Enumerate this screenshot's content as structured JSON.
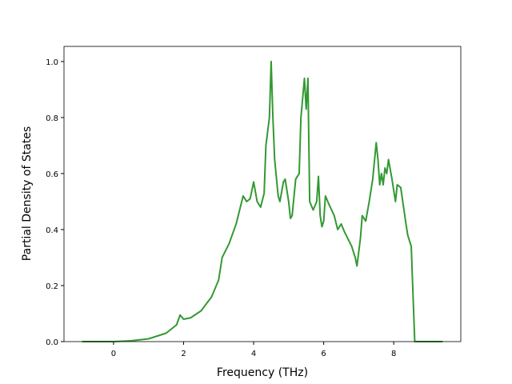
{
  "chart_data": {
    "type": "line",
    "x_label": "Frequency (THz)",
    "y_label": "Partial Density of States",
    "xlim": [
      -1.415,
      9.915
    ],
    "ylim": [
      0,
      1.054
    ],
    "xticks": [
      0,
      2,
      4,
      6,
      8
    ],
    "yticks": [
      {
        "value": 0,
        "label": "0.0"
      },
      0.2,
      0.4,
      0.6,
      0.8,
      {
        "value": 1,
        "label": "1.0"
      }
    ],
    "series": [
      {
        "color": "#339933",
        "x": [
          -0.9,
          0,
          0.5,
          1.0,
          1.5,
          1.8,
          1.9,
          2.0,
          2.2,
          2.5,
          2.8,
          3.0,
          3.1,
          3.3,
          3.5,
          3.6,
          3.7,
          3.8,
          3.9,
          4.0,
          4.1,
          4.2,
          4.3,
          4.35,
          4.45,
          4.5,
          4.55,
          4.6,
          4.7,
          4.75,
          4.85,
          4.9,
          5.0,
          5.05,
          5.1,
          5.2,
          5.3,
          5.35,
          5.45,
          5.5,
          5.55,
          5.6,
          5.7,
          5.8,
          5.85,
          5.9,
          5.95,
          6.0,
          6.05,
          6.15,
          6.3,
          6.4,
          6.5,
          6.6,
          6.8,
          6.9,
          6.95,
          7.05,
          7.1,
          7.2,
          7.3,
          7.4,
          7.5,
          7.55,
          7.6,
          7.65,
          7.7,
          7.75,
          7.8,
          7.85,
          7.95,
          8.05,
          8.1,
          8.2,
          8.35,
          8.4,
          8.5,
          8.6,
          9.4
        ],
        "values": [
          0,
          0,
          0.003,
          0.01,
          0.03,
          0.06,
          0.095,
          0.08,
          0.085,
          0.11,
          0.16,
          0.22,
          0.3,
          0.35,
          0.42,
          0.47,
          0.52,
          0.5,
          0.51,
          0.57,
          0.5,
          0.48,
          0.53,
          0.7,
          0.8,
          1.0,
          0.8,
          0.65,
          0.52,
          0.5,
          0.57,
          0.58,
          0.5,
          0.44,
          0.45,
          0.58,
          0.6,
          0.8,
          0.94,
          0.83,
          0.94,
          0.5,
          0.47,
          0.5,
          0.59,
          0.45,
          0.41,
          0.43,
          0.52,
          0.49,
          0.45,
          0.4,
          0.42,
          0.39,
          0.34,
          0.3,
          0.27,
          0.37,
          0.45,
          0.43,
          0.5,
          0.58,
          0.71,
          0.65,
          0.56,
          0.6,
          0.56,
          0.62,
          0.6,
          0.65,
          0.58,
          0.5,
          0.56,
          0.55,
          0.42,
          0.38,
          0.34,
          0,
          0
        ]
      }
    ]
  }
}
